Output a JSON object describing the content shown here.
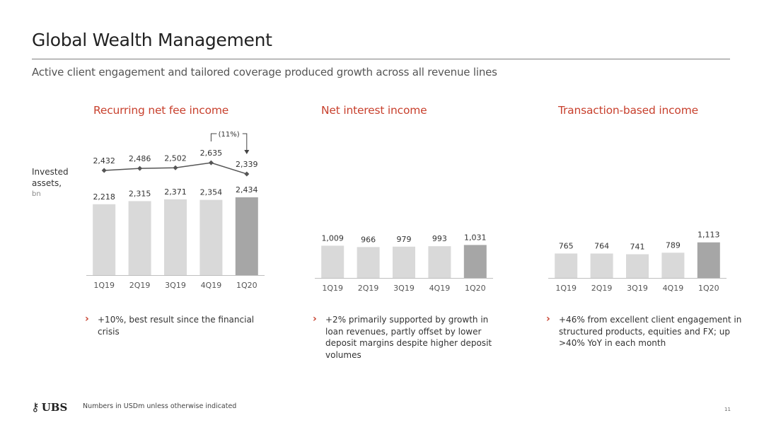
{
  "page": {
    "title": "Global Wealth Management",
    "subtitle": "Active client engagement and tailored coverage produced growth across all revenue lines",
    "side_label": "Invested assets,",
    "side_unit": "bn",
    "footer_note": "Numbers in USDm unless otherwise indicated",
    "brand": "UBS",
    "page_number": "11"
  },
  "colors": {
    "accent": "#c8412e",
    "bar_light": "#d9d9d9",
    "bar_dark": "#a6a6a6",
    "line": "#555555"
  },
  "panels": [
    {
      "title": "Recurring net fee income",
      "bullet": "+10%, best result since the financial crisis"
    },
    {
      "title": "Net interest income",
      "bullet": "+2% primarily supported by growth in loan revenues, partly offset by lower deposit margins despite higher deposit volumes"
    },
    {
      "title": "Transaction-based income",
      "bullet": "+46% from excellent client engagement in structured products, equities and FX; up >40% YoY in each month"
    }
  ],
  "chart_data": [
    {
      "type": "bar",
      "title": "Recurring net fee income",
      "categories": [
        "1Q19",
        "2Q19",
        "3Q19",
        "4Q19",
        "1Q20"
      ],
      "values": [
        2218,
        2315,
        2371,
        2354,
        2434
      ],
      "value_labels": [
        "2,218",
        "2,315",
        "2,371",
        "2,354",
        "2,434"
      ],
      "highlight_index": 4,
      "ylim": [
        0,
        2434
      ],
      "line_series": {
        "name": "Invested assets, bn",
        "values": [
          2432,
          2486,
          2502,
          2635,
          2339
        ],
        "value_labels": [
          "2,432",
          "2,486",
          "2,502",
          "2,635",
          "2,339"
        ],
        "annotation": "(11%)"
      }
    },
    {
      "type": "bar",
      "title": "Net interest income",
      "categories": [
        "1Q19",
        "2Q19",
        "3Q19",
        "4Q19",
        "1Q20"
      ],
      "values": [
        1009,
        966,
        979,
        993,
        1031
      ],
      "value_labels": [
        "1,009",
        "966",
        "979",
        "993",
        "1,031"
      ],
      "highlight_index": 4,
      "ylim": [
        0,
        2434
      ]
    },
    {
      "type": "bar",
      "title": "Transaction-based income",
      "categories": [
        "1Q19",
        "2Q19",
        "3Q19",
        "4Q19",
        "1Q20"
      ],
      "values": [
        765,
        764,
        741,
        789,
        1113
      ],
      "value_labels": [
        "765",
        "764",
        "741",
        "789",
        "1,113"
      ],
      "highlight_index": 4,
      "ylim": [
        0,
        2434
      ]
    }
  ]
}
